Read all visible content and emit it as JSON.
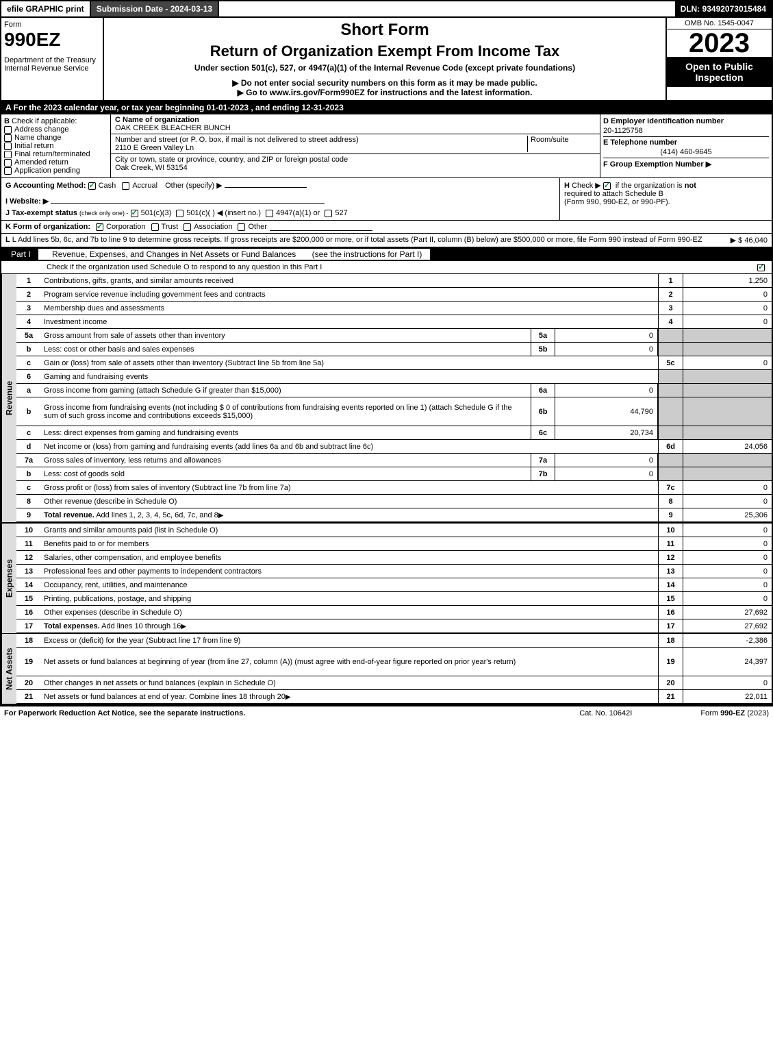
{
  "topbar": {
    "efile": "efile GRAPHIC print",
    "subdate": "Submission Date - 2024-03-13",
    "dln": "DLN: 93492073015484"
  },
  "header": {
    "form_label": "Form",
    "form_num": "990EZ",
    "dept": "Department of the Treasury",
    "irs": "Internal Revenue Service",
    "short_form": "Short Form",
    "title": "Return of Organization Exempt From Income Tax",
    "subtitle": "Under section 501(c), 527, or 4947(a)(1) of the Internal Revenue Code (except private foundations)",
    "instr1": "▶ Do not enter social security numbers on this form as it may be made public.",
    "instr2": "▶ Go to www.irs.gov/Form990EZ for instructions and the latest information.",
    "omb": "OMB No. 1545-0047",
    "year": "2023",
    "inspect": "Open to Public Inspection"
  },
  "rowA": "A  For the 2023 calendar year, or tax year beginning 01-01-2023 , and ending 12-31-2023",
  "sectionB": {
    "b_label": "B",
    "b_text": "Check if applicable:",
    "cb": [
      "Address change",
      "Name change",
      "Initial return",
      "Final return/terminated",
      "Amended return",
      "Application pending"
    ],
    "c_label": "C Name of organization",
    "org": "OAK CREEK BLEACHER BUNCH",
    "addr_label": "Number and street (or P. O. box, if mail is not delivered to street address)",
    "room": "Room/suite",
    "addr": "2110 E Green Valley Ln",
    "city_label": "City or town, state or province, country, and ZIP or foreign postal code",
    "city": "Oak Creek, WI  53154",
    "d_label": "D Employer identification number",
    "ein": "20-1125758",
    "e_label": "E Telephone number",
    "phone": "(414) 460-9645",
    "f_label": "F Group Exemption Number  ▶"
  },
  "rowG": {
    "label": "G Accounting Method:",
    "cash": "Cash",
    "accrual": "Accrual",
    "other": "Other (specify) ▶"
  },
  "rowH": {
    "label": "H",
    "text": "Check ▶",
    "text2": "if the organization is",
    "not": "not",
    "text3": "required to attach Schedule B",
    "text4": "(Form 990, 990-EZ, or 990-PF)."
  },
  "rowI": {
    "label": "I Website: ▶"
  },
  "rowJ": {
    "label": "J Tax-exempt status",
    "sub": "(check only one) -",
    "o1": "501(c)(3)",
    "o2": "501(c)(  ) ◀ (insert no.)",
    "o3": "4947(a)(1) or",
    "o4": "527"
  },
  "rowK": {
    "label": "K Form of organization:",
    "o1": "Corporation",
    "o2": "Trust",
    "o3": "Association",
    "o4": "Other"
  },
  "rowL": {
    "text": "L Add lines 5b, 6c, and 7b to line 9 to determine gross receipts. If gross receipts are $200,000 or more, or if total assets (Part II, column (B) below) are $500,000 or more, file Form 990 instead of Form 990-EZ",
    "amount": "▶ $ 46,040"
  },
  "partI": {
    "label": "Part I",
    "title": "Revenue, Expenses, and Changes in Net Assets or Fund Balances",
    "instr": "(see the instructions for Part I)",
    "check": "Check if the organization used Schedule O to respond to any question in this Part I"
  },
  "vert": {
    "rev": "Revenue",
    "exp": "Expenses",
    "net": "Net Assets"
  },
  "lines": [
    {
      "n": "1",
      "d": "Contributions, gifts, grants, and similar amounts received",
      "rn": "1",
      "rv": "1,250"
    },
    {
      "n": "2",
      "d": "Program service revenue including government fees and contracts",
      "rn": "2",
      "rv": "0"
    },
    {
      "n": "3",
      "d": "Membership dues and assessments",
      "rn": "3",
      "rv": "0"
    },
    {
      "n": "4",
      "d": "Investment income",
      "rn": "4",
      "rv": "0"
    },
    {
      "n": "5a",
      "d": "Gross amount from sale of assets other than inventory",
      "sn": "5a",
      "sv": "0",
      "shaded": true
    },
    {
      "n": "b",
      "d": "Less: cost or other basis and sales expenses",
      "sn": "5b",
      "sv": "0",
      "shaded": true
    },
    {
      "n": "c",
      "d": "Gain or (loss) from sale of assets other than inventory (Subtract line 5b from line 5a)",
      "rn": "5c",
      "rv": "0"
    },
    {
      "n": "6",
      "d": "Gaming and fundraising events",
      "shaded": true,
      "noval": true
    },
    {
      "n": "a",
      "d": "Gross income from gaming (attach Schedule G if greater than $15,000)",
      "sn": "6a",
      "sv": "0",
      "shaded": true
    },
    {
      "n": "b",
      "d": "Gross income from fundraising events (not including $ 0           of contributions from fundraising events reported on line 1) (attach Schedule G if the sum of such gross income and contributions exceeds $15,000)",
      "sn": "6b",
      "sv": "44,790",
      "shaded": true,
      "tall": true
    },
    {
      "n": "c",
      "d": "Less: direct expenses from gaming and fundraising events",
      "sn": "6c",
      "sv": "20,734",
      "shaded": true
    },
    {
      "n": "d",
      "d": "Net income or (loss) from gaming and fundraising events (add lines 6a and 6b and subtract line 6c)",
      "rn": "6d",
      "rv": "24,056"
    },
    {
      "n": "7a",
      "d": "Gross sales of inventory, less returns and allowances",
      "sn": "7a",
      "sv": "0",
      "shaded": true
    },
    {
      "n": "b",
      "d": "Less: cost of goods sold",
      "sn": "7b",
      "sv": "0",
      "shaded": true
    },
    {
      "n": "c",
      "d": "Gross profit or (loss) from sales of inventory (Subtract line 7b from line 7a)",
      "rn": "7c",
      "rv": "0"
    },
    {
      "n": "8",
      "d": "Other revenue (describe in Schedule O)",
      "rn": "8",
      "rv": "0"
    },
    {
      "n": "9",
      "d": "Total revenue. Add lines 1, 2, 3, 4, 5c, 6d, 7c, and 8",
      "rn": "9",
      "rv": "25,306",
      "bold": true,
      "arrow": true
    }
  ],
  "expenses": [
    {
      "n": "10",
      "d": "Grants and similar amounts paid (list in Schedule O)",
      "rn": "10",
      "rv": "0"
    },
    {
      "n": "11",
      "d": "Benefits paid to or for members",
      "rn": "11",
      "rv": "0"
    },
    {
      "n": "12",
      "d": "Salaries, other compensation, and employee benefits",
      "rn": "12",
      "rv": "0"
    },
    {
      "n": "13",
      "d": "Professional fees and other payments to independent contractors",
      "rn": "13",
      "rv": "0"
    },
    {
      "n": "14",
      "d": "Occupancy, rent, utilities, and maintenance",
      "rn": "14",
      "rv": "0"
    },
    {
      "n": "15",
      "d": "Printing, publications, postage, and shipping",
      "rn": "15",
      "rv": "0"
    },
    {
      "n": "16",
      "d": "Other expenses (describe in Schedule O)",
      "rn": "16",
      "rv": "27,692"
    },
    {
      "n": "17",
      "d": "Total expenses. Add lines 10 through 16",
      "rn": "17",
      "rv": "27,692",
      "bold": true,
      "arrow": true
    }
  ],
  "netassets": [
    {
      "n": "18",
      "d": "Excess or (deficit) for the year (Subtract line 17 from line 9)",
      "rn": "18",
      "rv": "-2,386"
    },
    {
      "n": "19",
      "d": "Net assets or fund balances at beginning of year (from line 27, column (A)) (must agree with end-of-year figure reported on prior year's return)",
      "rn": "19",
      "rv": "24,397",
      "tall": true
    },
    {
      "n": "20",
      "d": "Other changes in net assets or fund balances (explain in Schedule O)",
      "rn": "20",
      "rv": "0"
    },
    {
      "n": "21",
      "d": "Net assets or fund balances at end of year. Combine lines 18 through 20",
      "rn": "21",
      "rv": "22,011",
      "arrow": true
    }
  ],
  "footer": {
    "left": "For Paperwork Reduction Act Notice, see the separate instructions.",
    "mid": "Cat. No. 10642I",
    "right": "Form 990-EZ (2023)"
  }
}
